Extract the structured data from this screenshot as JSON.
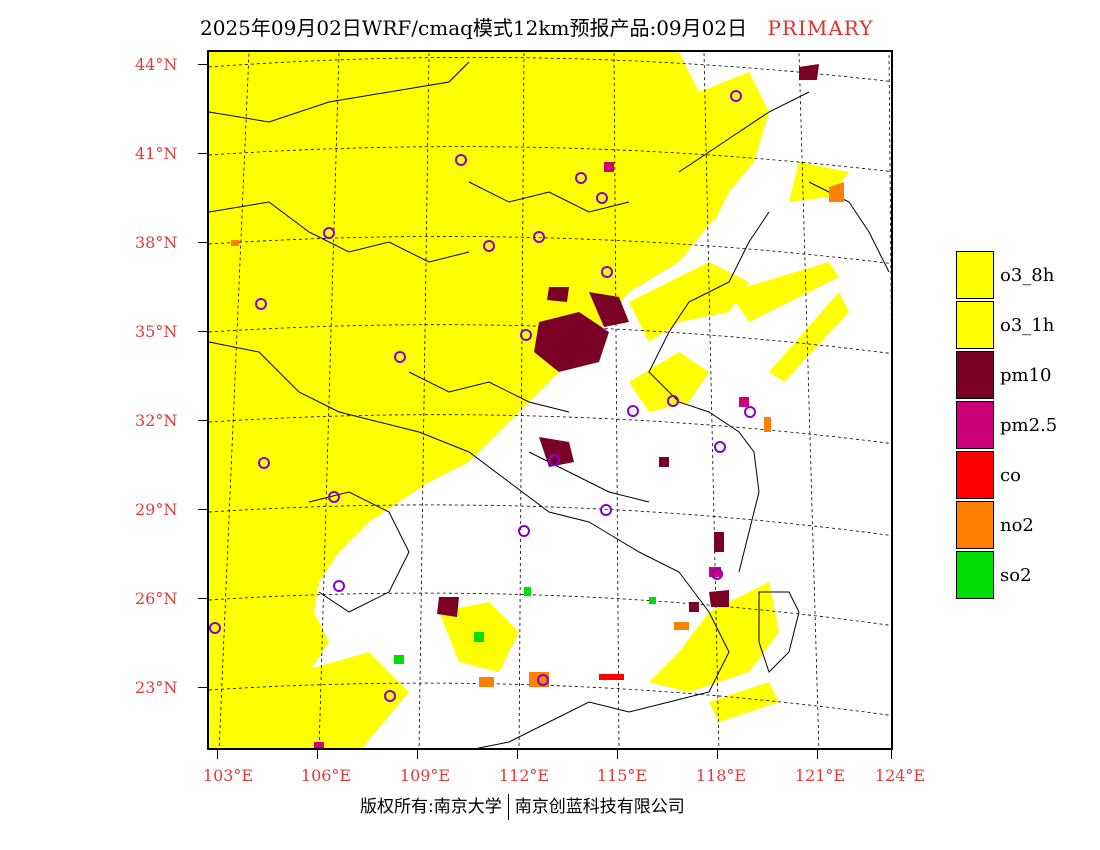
{
  "title": {
    "main": "2025年09月02日WRF/cmaq模式12km预报产品:09月02日",
    "mode": "PRIMARY"
  },
  "axes": {
    "lat_labels": [
      "44°N",
      "41°N",
      "38°N",
      "35°N",
      "32°N",
      "29°N",
      "26°N",
      "23°N"
    ],
    "lon_labels": [
      "103°E",
      "106°E",
      "109°E",
      "112°E",
      "115°E",
      "118°E",
      "121°E",
      "124°E"
    ]
  },
  "legend": {
    "items": [
      {
        "label": "o3_8h",
        "color": "#ffff00"
      },
      {
        "label": "o3_1h",
        "color": "#ffff00"
      },
      {
        "label": "pm10",
        "color": "#7a0026"
      },
      {
        "label": "pm2.5",
        "color": "#cc0077"
      },
      {
        "label": "co",
        "color": "#ff0000"
      },
      {
        "label": "no2",
        "color": "#ff7f00"
      },
      {
        "label": "so2",
        "color": "#00dd00"
      }
    ]
  },
  "footer": {
    "left": "版权所有:南京大学",
    "right": "南京创蓝科技有限公司"
  },
  "colors": {
    "o3": "#ffff00",
    "pm10": "#7a0026",
    "pm25": "#cc0077",
    "co": "#ff0000",
    "no2": "#ff7f00",
    "so2": "#00dd00",
    "city_marker": "#8800cc",
    "axis_label": "#e03a3a"
  }
}
